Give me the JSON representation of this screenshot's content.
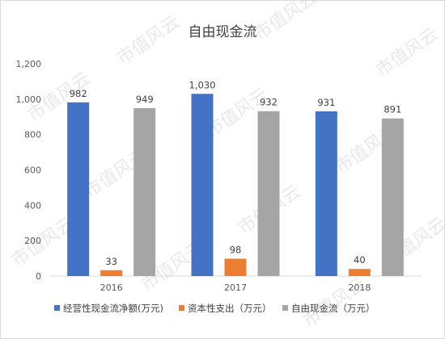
{
  "chart_data": {
    "type": "bar",
    "title": "自由现金流",
    "categories": [
      "2016",
      "2017",
      "2018"
    ],
    "series": [
      {
        "name": "经营性现金流净额(万元)",
        "color": "#4472c4",
        "values": [
          982,
          1030,
          931
        ],
        "labels": [
          "982",
          "1,030",
          "931"
        ]
      },
      {
        "name": "资本性支出（万元）",
        "color": "#ed7d31",
        "values": [
          33,
          98,
          40
        ],
        "labels": [
          "33",
          "98",
          "40"
        ]
      },
      {
        "name": "自由现金流（万元）",
        "color": "#a5a5a5",
        "values": [
          949,
          932,
          891
        ],
        "labels": [
          "949",
          "932",
          "891"
        ]
      }
    ],
    "ylim": [
      0,
      1200
    ],
    "yticks": [
      0,
      200,
      400,
      600,
      800,
      1000,
      1200
    ],
    "ytick_labels": [
      "0",
      "200",
      "400",
      "600",
      "800",
      "1,000",
      "1,200"
    ],
    "grid": false,
    "legend_position": "bottom"
  },
  "watermark": "市值风云"
}
